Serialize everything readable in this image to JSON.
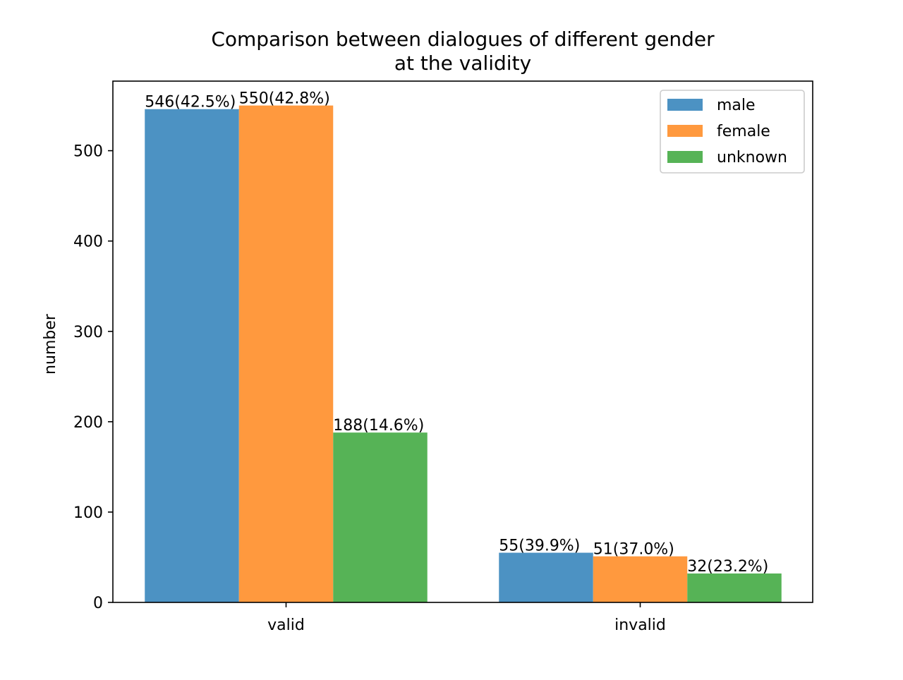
{
  "chart_data": {
    "type": "bar",
    "title_lines": [
      "Comparison between dialogues of different gender",
      "at the validity"
    ],
    "xlabel": "",
    "ylabel": "number",
    "categories": [
      "valid",
      "invalid"
    ],
    "ylim": [
      0,
      577
    ],
    "yticks": [
      0,
      100,
      200,
      300,
      400,
      500
    ],
    "grid": false,
    "legend_position": "top-right",
    "series": [
      {
        "name": "male",
        "color": "#4c92c3",
        "values": [
          546,
          55
        ],
        "labels": [
          "546(42.5%)",
          "55(39.9%)"
        ]
      },
      {
        "name": "female",
        "color": "#ff993e",
        "values": [
          550,
          51
        ],
        "labels": [
          "550(42.8%)",
          "51(37.0%)"
        ]
      },
      {
        "name": "unknown",
        "color": "#56b356",
        "values": [
          188,
          32
        ],
        "labels": [
          "188(14.6%)",
          "32(23.2%)"
        ]
      }
    ]
  }
}
